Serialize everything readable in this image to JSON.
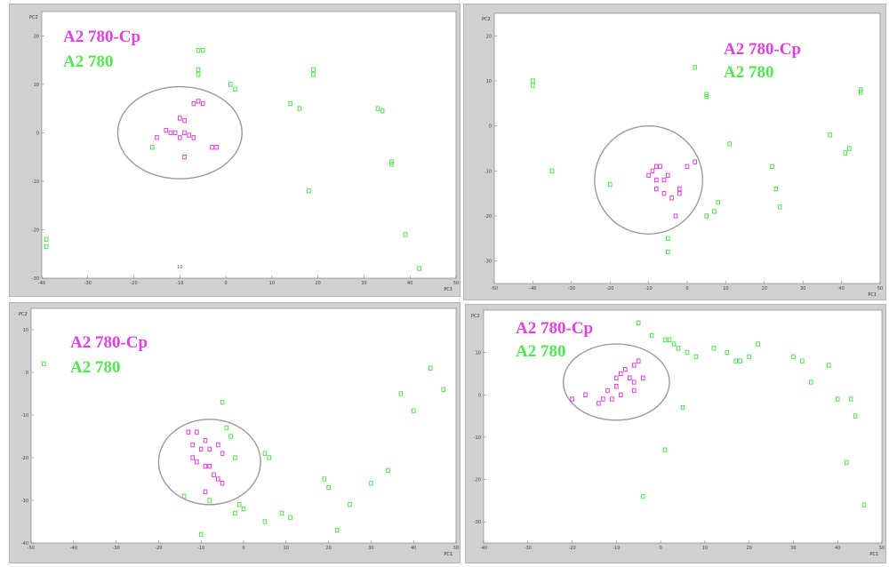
{
  "colors": {
    "cp": "#e040e0",
    "wt": "#50e650",
    "frame": "#d0d0d0",
    "ellipse": "#9a9a9a"
  },
  "legend": {
    "cp_label": "A2 780-Cp",
    "wt_label": "A2 780"
  },
  "chart_data": [
    {
      "type": "scatter",
      "xlabel": "PC1",
      "ylabel": "PC2",
      "xlim": [
        -40,
        50
      ],
      "ylim": [
        -30,
        25
      ],
      "xticks": [
        "-40",
        "-30",
        "-20",
        "-10",
        "0",
        "10",
        "20",
        "30",
        "40",
        "50"
      ],
      "yticks": [
        "-30",
        "-20",
        "-10",
        "0",
        "10",
        "20"
      ],
      "extra_label": "10",
      "series": [
        {
          "name": "A2 780-Cp",
          "points": [
            [
              -7,
              6
            ],
            [
              -6,
              6.5
            ],
            [
              -5,
              6
            ],
            [
              -10,
              3
            ],
            [
              -9,
              2.5
            ],
            [
              -11,
              0
            ],
            [
              -9,
              0
            ],
            [
              -8,
              -0.5
            ],
            [
              -10,
              -1
            ],
            [
              -7,
              -1
            ],
            [
              -12,
              0
            ],
            [
              -13,
              0.5
            ],
            [
              -15,
              -1
            ],
            [
              -9,
              -5
            ],
            [
              -3,
              -3
            ],
            [
              -2,
              -3
            ]
          ]
        },
        {
          "name": "A2 780",
          "points": [
            [
              -6,
              17
            ],
            [
              -5,
              17
            ],
            [
              -6,
              13
            ],
            [
              -6,
              12
            ],
            [
              1,
              10
            ],
            [
              2,
              9
            ],
            [
              -16,
              -3
            ],
            [
              14,
              6
            ],
            [
              16,
              5
            ],
            [
              19,
              13
            ],
            [
              19,
              12
            ],
            [
              33,
              5
            ],
            [
              34,
              4.5
            ],
            [
              36,
              -6
            ],
            [
              36,
              -6.5
            ],
            [
              18,
              -12
            ],
            [
              39,
              -21
            ],
            [
              -39,
              -22
            ],
            [
              -39,
              -23.5
            ],
            [
              42,
              -28
            ]
          ]
        }
      ],
      "ellipse": {
        "cx": -10,
        "cy": 0,
        "rx": 13.5,
        "ry": 9.5
      }
    },
    {
      "type": "scatter",
      "xlabel": "PC1",
      "ylabel": "PC2",
      "xlim": [
        -50,
        50
      ],
      "ylim": [
        -35,
        25
      ],
      "xticks": [
        "-50",
        "-40",
        "-30",
        "-20",
        "-10",
        "0",
        "10",
        "20",
        "30",
        "40",
        "50"
      ],
      "yticks": [
        "-30",
        "-20",
        "-10",
        "0",
        "10",
        "20"
      ],
      "series": [
        {
          "name": "A2 780-Cp",
          "points": [
            [
              -8,
              -9
            ],
            [
              -7,
              -9
            ],
            [
              -9,
              -10
            ],
            [
              -10,
              -11
            ],
            [
              -8,
              -12
            ],
            [
              -6,
              -12
            ],
            [
              -5,
              -11
            ],
            [
              -8,
              -14
            ],
            [
              -6,
              -15
            ],
            [
              -4,
              -16
            ],
            [
              -2,
              -14
            ],
            [
              -2,
              -15
            ],
            [
              0,
              -9
            ],
            [
              2,
              -8
            ],
            [
              -3,
              -20
            ]
          ]
        },
        {
          "name": "A2 780",
          "points": [
            [
              -40,
              10
            ],
            [
              -40,
              9
            ],
            [
              2,
              13
            ],
            [
              5,
              7
            ],
            [
              5,
              6.5
            ],
            [
              -35,
              -10
            ],
            [
              -20,
              -13
            ],
            [
              -5,
              -25
            ],
            [
              -5,
              -28
            ],
            [
              8,
              -17
            ],
            [
              7,
              -19
            ],
            [
              5,
              -20
            ],
            [
              11,
              -4
            ],
            [
              22,
              -9
            ],
            [
              23,
              -14
            ],
            [
              24,
              -18
            ],
            [
              37,
              -2
            ],
            [
              41,
              -6
            ],
            [
              42,
              -5
            ],
            [
              45,
              8
            ],
            [
              45,
              7.5
            ]
          ]
        }
      ],
      "ellipse": {
        "cx": -10,
        "cy": -12,
        "rx": 14,
        "ry": 12
      }
    },
    {
      "type": "scatter",
      "xlabel": "PC1",
      "ylabel": "PC2",
      "xlim": [
        -50,
        50
      ],
      "ylim": [
        -40,
        15
      ],
      "xticks": [
        "-50",
        "-40",
        "-30",
        "-20",
        "-10",
        "0",
        "10",
        "20",
        "30",
        "40",
        "50"
      ],
      "yticks": [
        "-40",
        "-30",
        "-20",
        "-10",
        "0",
        "10"
      ],
      "series": [
        {
          "name": "A2 780-Cp",
          "points": [
            [
              -13,
              -14
            ],
            [
              -11,
              -14
            ],
            [
              -9,
              -16
            ],
            [
              -12,
              -17
            ],
            [
              -10,
              -18
            ],
            [
              -8,
              -18
            ],
            [
              -6,
              -17
            ],
            [
              -5,
              -19
            ],
            [
              -12,
              -20
            ],
            [
              -11,
              -21
            ],
            [
              -9,
              -22
            ],
            [
              -8,
              -22
            ],
            [
              -7,
              -24
            ],
            [
              -6,
              -25
            ],
            [
              -5,
              -26
            ],
            [
              -9,
              -28
            ]
          ]
        },
        {
          "name": "A2 780",
          "points": [
            [
              -47,
              2
            ],
            [
              -5,
              -7
            ],
            [
              -3,
              -15
            ],
            [
              -4,
              -13
            ],
            [
              -2,
              -20
            ],
            [
              6,
              -20
            ],
            [
              5,
              -19
            ],
            [
              -14,
              -29
            ],
            [
              -8,
              -30
            ],
            [
              -2,
              -33
            ],
            [
              -1,
              -31
            ],
            [
              0,
              -32
            ],
            [
              5,
              -35
            ],
            [
              9,
              -33
            ],
            [
              11,
              -34
            ],
            [
              19,
              -25
            ],
            [
              20,
              -27
            ],
            [
              25,
              -31
            ],
            [
              22,
              -37
            ],
            [
              30,
              -26
            ],
            [
              34,
              -23
            ],
            [
              37,
              -5
            ],
            [
              40,
              -9
            ],
            [
              44,
              1
            ],
            [
              47,
              -4
            ],
            [
              -10,
              -38
            ]
          ]
        }
      ],
      "ellipse": {
        "cx": -8,
        "cy": -21,
        "rx": 12,
        "ry": 10
      }
    },
    {
      "type": "scatter",
      "xlabel": "PC1",
      "ylabel": "PC2",
      "xlim": [
        -40,
        50
      ],
      "ylim": [
        -35,
        20
      ],
      "xticks": [
        "-40",
        "-30",
        "-20",
        "-10",
        "0",
        "10",
        "20",
        "30",
        "40",
        "50"
      ],
      "yticks": [
        "-30",
        "-20",
        "-10",
        "0",
        "10"
      ],
      "series": [
        {
          "name": "A2 780-Cp",
          "points": [
            [
              -5,
              8
            ],
            [
              -6,
              7
            ],
            [
              -8,
              6
            ],
            [
              -9,
              5
            ],
            [
              -10,
              4
            ],
            [
              -7,
              4
            ],
            [
              -4,
              4
            ],
            [
              -6,
              3
            ],
            [
              -10,
              2
            ],
            [
              -12,
              1
            ],
            [
              -9,
              0
            ],
            [
              -11,
              -1
            ],
            [
              -13,
              -1
            ],
            [
              -14,
              -2
            ],
            [
              -17,
              0
            ],
            [
              -20,
              -1
            ],
            [
              -6,
              1
            ]
          ]
        },
        {
          "name": "A2 780",
          "points": [
            [
              -5,
              17
            ],
            [
              -2,
              14
            ],
            [
              1,
              13
            ],
            [
              2,
              13
            ],
            [
              3,
              12
            ],
            [
              4,
              11
            ],
            [
              6,
              10
            ],
            [
              8,
              9
            ],
            [
              12,
              11
            ],
            [
              15,
              10
            ],
            [
              17,
              8
            ],
            [
              18,
              8
            ],
            [
              20,
              9
            ],
            [
              22,
              12
            ],
            [
              30,
              9
            ],
            [
              32,
              8
            ],
            [
              34,
              3
            ],
            [
              38,
              7
            ],
            [
              40,
              -1
            ],
            [
              43,
              -1
            ],
            [
              44,
              -5
            ],
            [
              42,
              -16
            ],
            [
              46,
              -26
            ],
            [
              1,
              -13
            ],
            [
              -4,
              -24
            ],
            [
              5,
              -3
            ]
          ]
        }
      ],
      "ellipse": {
        "cx": -10,
        "cy": 3,
        "rx": 12,
        "ry": 9
      }
    }
  ]
}
